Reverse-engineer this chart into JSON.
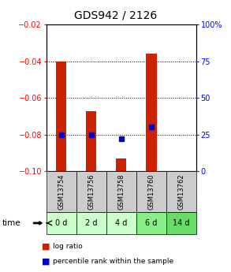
{
  "title": "GDS942 / 2126",
  "samples": [
    "GSM13754",
    "GSM13756",
    "GSM13758",
    "GSM13760",
    "GSM13762"
  ],
  "time_labels": [
    "0 d",
    "2 d",
    "4 d",
    "6 d",
    "14 d"
  ],
  "log_ratios": [
    -0.04,
    -0.067,
    -0.093,
    -0.036,
    -0.1
  ],
  "percentile_ranks": [
    25,
    25,
    22,
    30,
    -999
  ],
  "ylim_left": [
    -0.1,
    -0.02
  ],
  "ylim_right": [
    0,
    100
  ],
  "yticks_left": [
    -0.1,
    -0.08,
    -0.06,
    -0.04,
    -0.02
  ],
  "yticks_right": [
    0,
    25,
    50,
    75,
    100
  ],
  "bar_color": "#cc2200",
  "dot_color": "#0000cc",
  "time_row_colors": [
    "#ccffcc",
    "#ccffcc",
    "#ccffcc",
    "#88ee88",
    "#66dd66"
  ],
  "gsm_row_color": "#cccccc",
  "legend_items": [
    "log ratio",
    "percentile rank within the sample"
  ],
  "bar_width": 0.35
}
